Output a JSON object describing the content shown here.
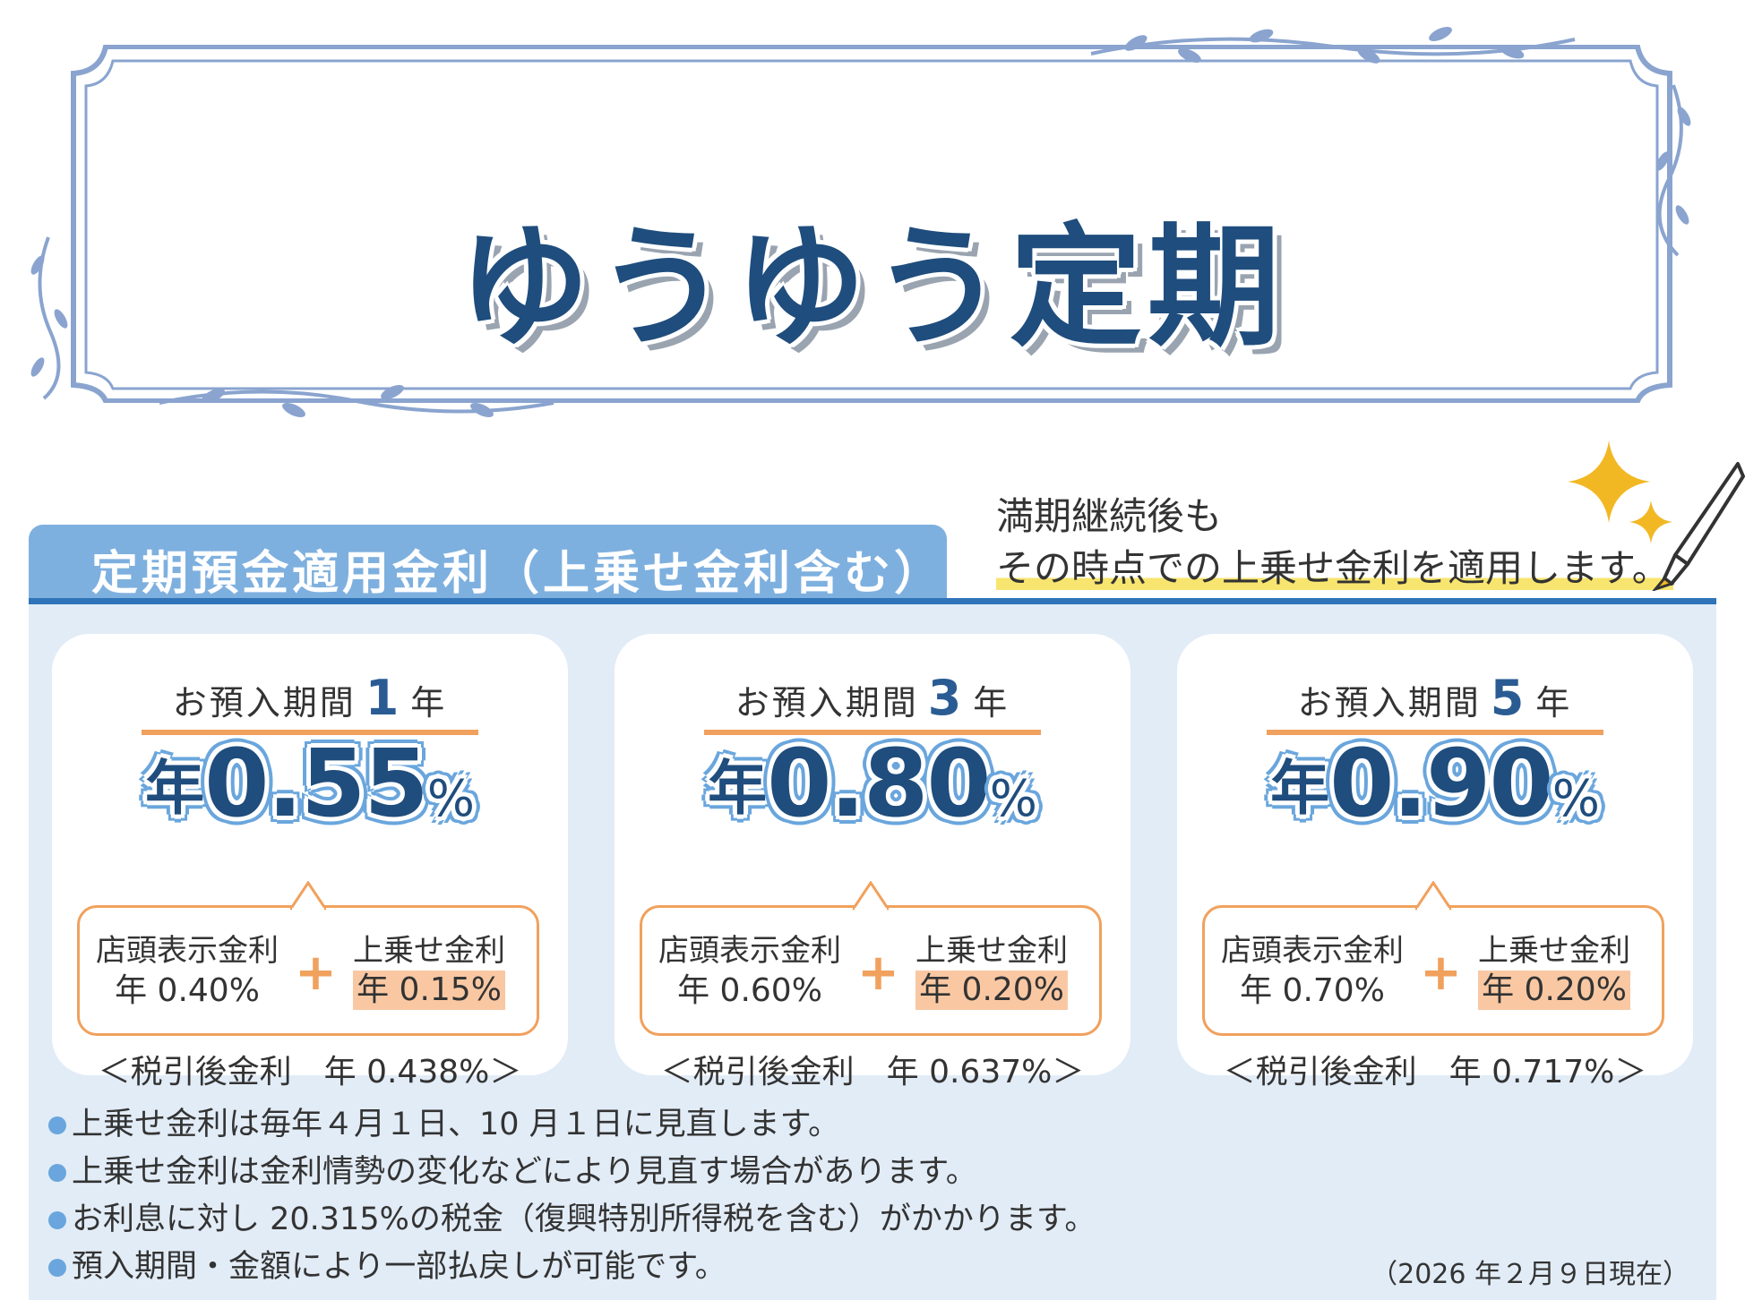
{
  "title": "ゆうゆう定期",
  "section_title": "定期預金適用金利（上乗せ金利含む）",
  "note": {
    "line1": "満期継続後も",
    "line2": "その時点での上乗せ金利を適用します。"
  },
  "plans": [
    {
      "term_prefix": "お預入期間",
      "term_num": "1",
      "term_unit": "年",
      "rate_prefix": "年",
      "rate_value": "0.55",
      "rate_unit": "%",
      "base_label": "店頭表示金利",
      "base_rate": "年 0.40%",
      "plus": "+",
      "bonus_label": "上乗せ金利",
      "bonus_rate": "年 0.15%",
      "after_tax": "＜税引後金利　年 0.438%＞"
    },
    {
      "term_prefix": "お預入期間",
      "term_num": "3",
      "term_unit": "年",
      "rate_prefix": "年",
      "rate_value": "0.80",
      "rate_unit": "%",
      "base_label": "店頭表示金利",
      "base_rate": "年 0.60%",
      "plus": "+",
      "bonus_label": "上乗せ金利",
      "bonus_rate": "年 0.20%",
      "after_tax": "＜税引後金利　年 0.637%＞"
    },
    {
      "term_prefix": "お預入期間",
      "term_num": "5",
      "term_unit": "年",
      "rate_prefix": "年",
      "rate_value": "0.90",
      "rate_unit": "%",
      "base_label": "店頭表示金利",
      "base_rate": "年 0.70%",
      "plus": "+",
      "bonus_label": "上乗せ金利",
      "bonus_rate": "年 0.20%",
      "after_tax": "＜税引後金利　年 0.717%＞"
    }
  ],
  "footnotes": [
    "上乗せ金利は毎年４月１日、10 月１日に見直します。",
    "上乗せ金利は金利情勢の変化などにより見直す場合があります。",
    "お利息に対し 20.315%の税金（復興特別所得税を含む）がかかります。",
    "預入期間・金額により一部払戻しが可能です。"
  ],
  "as_of": "（2026 年２月９日現在）",
  "colors": {
    "title": "#1f4d7d",
    "frame": "#8aa4cf",
    "tab": "#7eb0df",
    "rule": "#2f73b8",
    "panel": "#e2ecf7",
    "accent_orange": "#f0a15d",
    "highlight": "#f9c8a3",
    "marker_yellow": "#f7e56f",
    "sparkle": "#f2b824"
  },
  "icons": {
    "sparkle": "sparkle-icon",
    "pen": "pen-icon",
    "vine": "vine-ornament-icon",
    "bullet": "bullet-dot-icon"
  }
}
